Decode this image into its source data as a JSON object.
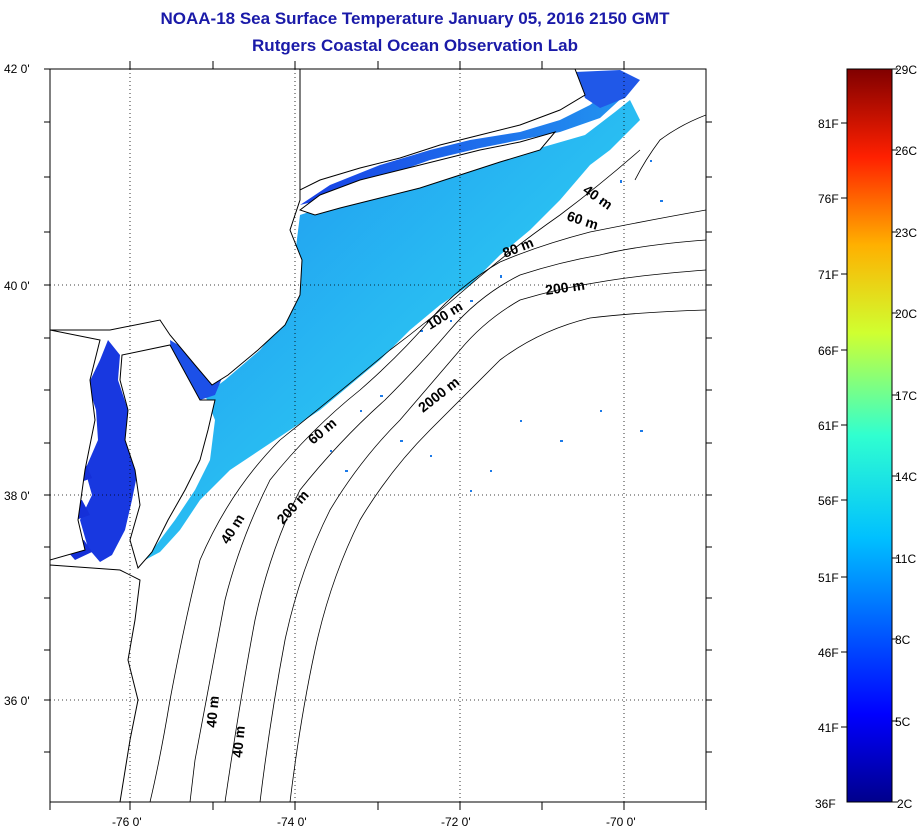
{
  "title": {
    "line1": "NOAA-18 Sea Surface Temperature January 05, 2016 2150 GMT",
    "line2": "Rutgers Coastal Ocean Observation Lab"
  },
  "lat_labels": [
    "42 0'",
    "40 0'",
    "38 0'",
    "36 0'"
  ],
  "lon_labels": [
    "-76 0'",
    "-74 0'",
    "-72 0'",
    "-70 0'"
  ],
  "contour_labels": [
    "40 m",
    "60 m",
    "80 m",
    "200 m",
    "100 m",
    "2000 m",
    "60 m",
    "200 m",
    "40 m",
    "40 m"
  ],
  "colorbar": {
    "fahrenheit": [
      "81F",
      "76F",
      "71F",
      "66F",
      "61F",
      "56F",
      "51F",
      "46F",
      "41F",
      "36F"
    ],
    "celsius": [
      "29C",
      "26C",
      "23C",
      "20C",
      "17C",
      "14C",
      "11C",
      "8C",
      "5C",
      "2C"
    ],
    "min_c": 2,
    "max_c": 29
  },
  "colors": {
    "title": "#1a1aa8",
    "land": "#ffffff",
    "water_no_data": "#ffffff",
    "sst_cold": "#1030e0",
    "sst_mid": "#22b4f0",
    "sst_warm": "#50e0e0"
  }
}
